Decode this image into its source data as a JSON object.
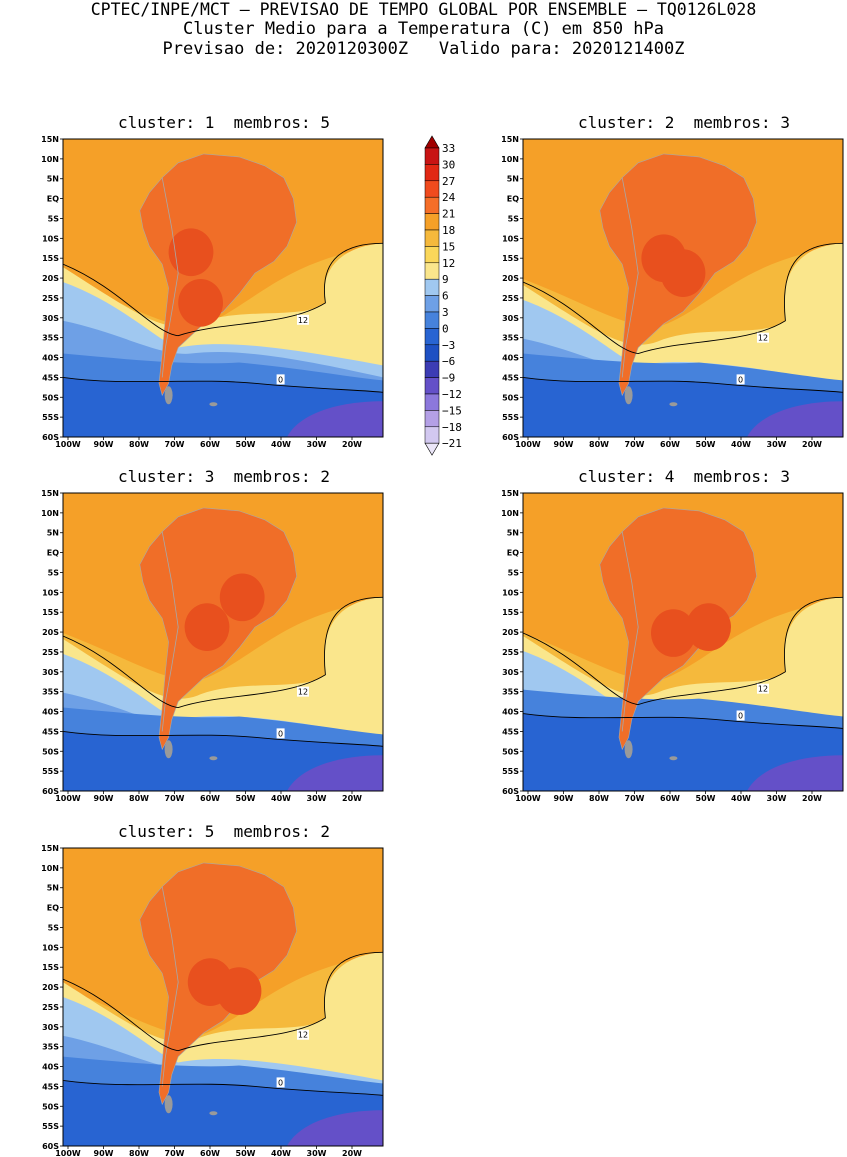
{
  "header": {
    "line1": "CPTEC/INPE/MCT – PREVISAO DE TEMPO GLOBAL POR ENSEMBLE – TQ0126L028",
    "line2": "Cluster Medio para a Temperatura (C) em 850 hPa",
    "line3": "Previsao de: 2020120300Z   Valido para: 2020121400Z"
  },
  "panels": [
    {
      "title": "cluster: 1  membros: 5"
    },
    {
      "title": "cluster: 2  membros: 3"
    },
    {
      "title": "cluster: 3  membros: 2"
    },
    {
      "title": "cluster: 4  membros: 3"
    },
    {
      "title": "cluster: 5  membros: 2"
    }
  ],
  "axes": {
    "lat_labels": [
      "15N",
      "10N",
      "5N",
      "EQ",
      "5S",
      "10S",
      "15S",
      "20S",
      "25S",
      "30S",
      "35S",
      "40S",
      "45S",
      "50S",
      "55S",
      "60S"
    ],
    "lon_labels": [
      "100W",
      "90W",
      "80W",
      "70W",
      "60W",
      "50W",
      "40W",
      "30W",
      "20W"
    ]
  },
  "colorbar": {
    "labels": [
      "33",
      "30",
      "27",
      "24",
      "21",
      "18",
      "15",
      "12",
      "9",
      "6",
      "3",
      "0",
      "−3",
      "−6",
      "−9",
      "−12",
      "−15",
      "−18",
      "−21"
    ],
    "colors": [
      "#a00000",
      "#c81414",
      "#e12814",
      "#f04b1e",
      "#f56e28",
      "#f5a028",
      "#f5b93c",
      "#fad75a",
      "#fae68c",
      "#a0c8f0",
      "#6ea0e6",
      "#4682dc",
      "#2864d2",
      "#1e50c3",
      "#3c3cb4",
      "#6450c8",
      "#8c78dc",
      "#b4a0e6",
      "#d2c8f0",
      "#ebe6f8"
    ]
  },
  "contour_labels": {
    "twelve": "12",
    "zero": "0"
  },
  "palette": {
    "warm_orange": "#f5a028",
    "light_orange": "#f5b93c",
    "yellow": "#fae68c",
    "land_dark": "#f06e28",
    "land_red": "#e8501e",
    "light_blue": "#a0c8f0",
    "mid_blue": "#6ea0e6",
    "blue": "#4682dc",
    "deep_blue": "#2864d2",
    "purple": "#6450c8"
  }
}
